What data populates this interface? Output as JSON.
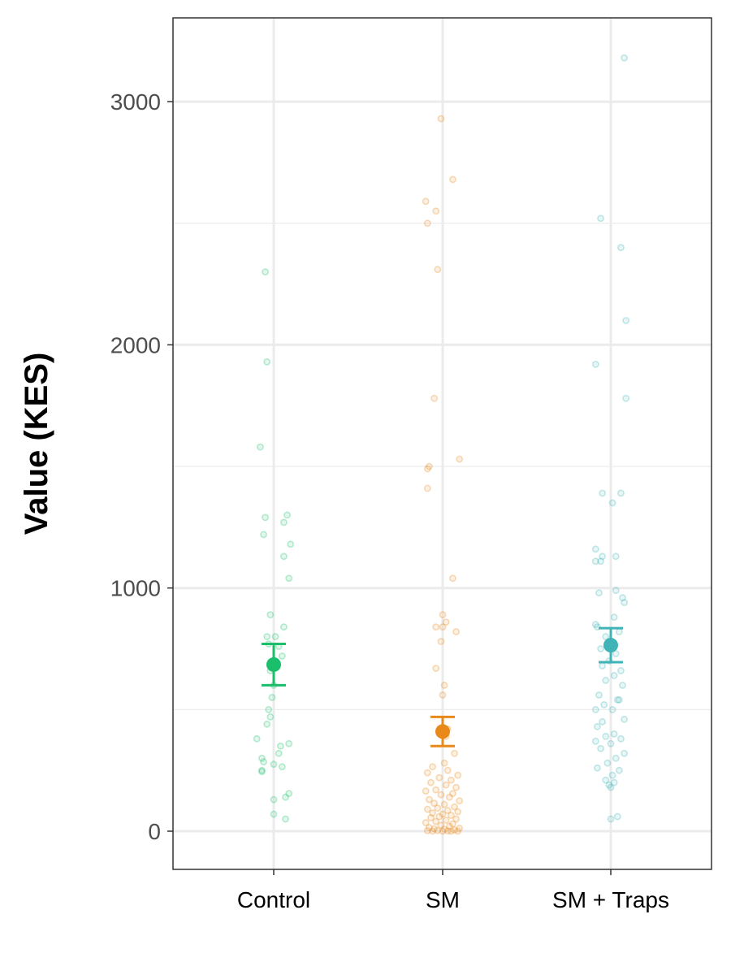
{
  "chart_data": {
    "type": "scatter",
    "title": "",
    "xlabel": "",
    "ylabel": "Value (KES)",
    "ylim": [
      -150,
      3350
    ],
    "y_ticks": [
      0,
      1000,
      2000,
      3000
    ],
    "y_tick_labels": [
      "0",
      "1000",
      "2000",
      "3000"
    ],
    "categories": [
      "Control",
      "SM",
      "SM + Traps"
    ],
    "grid": true,
    "legend": "none",
    "series": [
      {
        "category": "Control",
        "color": "#1bbf6b",
        "mean": 685,
        "ci_low": 600,
        "ci_high": 770,
        "points": [
          {
            "x": -0.05,
            "y": 2300
          },
          {
            "x": -0.04,
            "y": 1930
          },
          {
            "x": -0.08,
            "y": 1580
          },
          {
            "x": 0.08,
            "y": 1300
          },
          {
            "x": -0.05,
            "y": 1290
          },
          {
            "x": 0.06,
            "y": 1270
          },
          {
            "x": -0.06,
            "y": 1220
          },
          {
            "x": 0.1,
            "y": 1180
          },
          {
            "x": 0.06,
            "y": 1130
          },
          {
            "x": 0.09,
            "y": 1040
          },
          {
            "x": -0.02,
            "y": 890
          },
          {
            "x": 0.06,
            "y": 840
          },
          {
            "x": -0.04,
            "y": 800
          },
          {
            "x": 0.01,
            "y": 800
          },
          {
            "x": -0.03,
            "y": 770
          },
          {
            "x": 0.03,
            "y": 760
          },
          {
            "x": 0.05,
            "y": 720
          },
          {
            "x": -0.02,
            "y": 660
          },
          {
            "x": 0.0,
            "y": 600
          },
          {
            "x": -0.01,
            "y": 550
          },
          {
            "x": -0.03,
            "y": 500
          },
          {
            "x": -0.02,
            "y": 470
          },
          {
            "x": -0.04,
            "y": 440
          },
          {
            "x": -0.1,
            "y": 380
          },
          {
            "x": 0.09,
            "y": 360
          },
          {
            "x": 0.04,
            "y": 350
          },
          {
            "x": 0.03,
            "y": 320
          },
          {
            "x": -0.07,
            "y": 300
          },
          {
            "x": -0.06,
            "y": 285
          },
          {
            "x": 0.0,
            "y": 275
          },
          {
            "x": 0.05,
            "y": 265
          },
          {
            "x": -0.07,
            "y": 250
          },
          {
            "x": -0.07,
            "y": 245
          },
          {
            "x": 0.09,
            "y": 155
          },
          {
            "x": 0.07,
            "y": 140
          },
          {
            "x": 0.0,
            "y": 130
          },
          {
            "x": 0.0,
            "y": 70
          },
          {
            "x": 0.07,
            "y": 50
          }
        ]
      },
      {
        "category": "SM",
        "color": "#e8891a",
        "mean": 410,
        "ci_low": 350,
        "ci_high": 470,
        "points": [
          {
            "x": -0.01,
            "y": 2930
          },
          {
            "x": 0.06,
            "y": 2680
          },
          {
            "x": -0.1,
            "y": 2590
          },
          {
            "x": -0.04,
            "y": 2550
          },
          {
            "x": -0.09,
            "y": 2500
          },
          {
            "x": -0.03,
            "y": 2310
          },
          {
            "x": -0.05,
            "y": 1780
          },
          {
            "x": 0.1,
            "y": 1530
          },
          {
            "x": -0.08,
            "y": 1500
          },
          {
            "x": -0.09,
            "y": 1490
          },
          {
            "x": -0.09,
            "y": 1410
          },
          {
            "x": 0.06,
            "y": 1040
          },
          {
            "x": 0.0,
            "y": 890
          },
          {
            "x": 0.02,
            "y": 860
          },
          {
            "x": -0.04,
            "y": 840
          },
          {
            "x": 0.0,
            "y": 840
          },
          {
            "x": 0.08,
            "y": 820
          },
          {
            "x": -0.01,
            "y": 780
          },
          {
            "x": -0.04,
            "y": 670
          },
          {
            "x": 0.01,
            "y": 600
          },
          {
            "x": 0.0,
            "y": 560
          },
          {
            "x": 0.03,
            "y": 420
          },
          {
            "x": 0.02,
            "y": 390
          },
          {
            "x": 0.07,
            "y": 320
          },
          {
            "x": 0.01,
            "y": 280
          },
          {
            "x": -0.06,
            "y": 265
          },
          {
            "x": 0.03,
            "y": 250
          },
          {
            "x": -0.09,
            "y": 240
          },
          {
            "x": 0.09,
            "y": 230
          },
          {
            "x": -0.02,
            "y": 220
          },
          {
            "x": 0.05,
            "y": 210
          },
          {
            "x": -0.07,
            "y": 200
          },
          {
            "x": 0.02,
            "y": 190
          },
          {
            "x": 0.08,
            "y": 180
          },
          {
            "x": -0.04,
            "y": 170
          },
          {
            "x": -0.1,
            "y": 165
          },
          {
            "x": 0.06,
            "y": 155
          },
          {
            "x": -0.01,
            "y": 150
          },
          {
            "x": 0.04,
            "y": 140
          },
          {
            "x": -0.08,
            "y": 130
          },
          {
            "x": 0.1,
            "y": 125
          },
          {
            "x": -0.05,
            "y": 115
          },
          {
            "x": 0.01,
            "y": 110
          },
          {
            "x": 0.07,
            "y": 100
          },
          {
            "x": -0.03,
            "y": 95
          },
          {
            "x": -0.09,
            "y": 90
          },
          {
            "x": 0.03,
            "y": 85
          },
          {
            "x": 0.09,
            "y": 80
          },
          {
            "x": -0.06,
            "y": 75
          },
          {
            "x": 0.0,
            "y": 70
          },
          {
            "x": 0.05,
            "y": 65
          },
          {
            "x": -0.02,
            "y": 60
          },
          {
            "x": -0.07,
            "y": 55
          },
          {
            "x": 0.08,
            "y": 50
          },
          {
            "x": 0.02,
            "y": 45
          },
          {
            "x": -0.04,
            "y": 40
          },
          {
            "x": -0.1,
            "y": 35
          },
          {
            "x": 0.06,
            "y": 30
          },
          {
            "x": -0.01,
            "y": 25
          },
          {
            "x": 0.04,
            "y": 20
          },
          {
            "x": -0.08,
            "y": 15
          },
          {
            "x": 0.1,
            "y": 12
          },
          {
            "x": -0.05,
            "y": 10
          },
          {
            "x": 0.01,
            "y": 8
          },
          {
            "x": 0.07,
            "y": 5
          },
          {
            "x": -0.03,
            "y": 3
          },
          {
            "x": -0.09,
            "y": 2
          },
          {
            "x": 0.03,
            "y": 1
          },
          {
            "x": 0.09,
            "y": 0
          },
          {
            "x": -0.06,
            "y": 0
          },
          {
            "x": 0.0,
            "y": 0
          },
          {
            "x": 0.05,
            "y": 0
          }
        ]
      },
      {
        "category": "SM + Traps",
        "color": "#3fb3b5",
        "mean": 765,
        "ci_low": 695,
        "ci_high": 835,
        "points": [
          {
            "x": 0.08,
            "y": 3180
          },
          {
            "x": -0.06,
            "y": 2520
          },
          {
            "x": 0.06,
            "y": 2400
          },
          {
            "x": 0.09,
            "y": 2100
          },
          {
            "x": -0.09,
            "y": 1920
          },
          {
            "x": 0.09,
            "y": 1780
          },
          {
            "x": -0.05,
            "y": 1390
          },
          {
            "x": 0.06,
            "y": 1390
          },
          {
            "x": 0.01,
            "y": 1350
          },
          {
            "x": -0.09,
            "y": 1160
          },
          {
            "x": -0.05,
            "y": 1130
          },
          {
            "x": 0.03,
            "y": 1130
          },
          {
            "x": -0.09,
            "y": 1110
          },
          {
            "x": -0.06,
            "y": 1110
          },
          {
            "x": 0.03,
            "y": 990
          },
          {
            "x": -0.07,
            "y": 980
          },
          {
            "x": 0.07,
            "y": 960
          },
          {
            "x": 0.08,
            "y": 940
          },
          {
            "x": 0.02,
            "y": 880
          },
          {
            "x": -0.09,
            "y": 850
          },
          {
            "x": -0.08,
            "y": 840
          },
          {
            "x": 0.05,
            "y": 820
          },
          {
            "x": -0.03,
            "y": 800
          },
          {
            "x": 0.0,
            "y": 780
          },
          {
            "x": -0.06,
            "y": 750
          },
          {
            "x": 0.03,
            "y": 730
          },
          {
            "x": -0.01,
            "y": 700
          },
          {
            "x": -0.05,
            "y": 680
          },
          {
            "x": 0.06,
            "y": 660
          },
          {
            "x": 0.02,
            "y": 640
          },
          {
            "x": -0.03,
            "y": 620
          },
          {
            "x": 0.07,
            "y": 600
          },
          {
            "x": -0.07,
            "y": 560
          },
          {
            "x": 0.04,
            "y": 540
          },
          {
            "x": 0.05,
            "y": 540
          },
          {
            "x": -0.04,
            "y": 520
          },
          {
            "x": 0.01,
            "y": 500
          },
          {
            "x": -0.09,
            "y": 500
          },
          {
            "x": 0.08,
            "y": 460
          },
          {
            "x": -0.05,
            "y": 450
          },
          {
            "x": -0.08,
            "y": 430
          },
          {
            "x": 0.02,
            "y": 400
          },
          {
            "x": -0.03,
            "y": 390
          },
          {
            "x": 0.06,
            "y": 380
          },
          {
            "x": -0.09,
            "y": 370
          },
          {
            "x": 0.0,
            "y": 360
          },
          {
            "x": -0.06,
            "y": 340
          },
          {
            "x": 0.08,
            "y": 320
          },
          {
            "x": 0.03,
            "y": 300
          },
          {
            "x": -0.02,
            "y": 280
          },
          {
            "x": -0.08,
            "y": 260
          },
          {
            "x": 0.05,
            "y": 250
          },
          {
            "x": 0.01,
            "y": 230
          },
          {
            "x": -0.03,
            "y": 210
          },
          {
            "x": 0.02,
            "y": 200
          },
          {
            "x": -0.01,
            "y": 190
          },
          {
            "x": 0.0,
            "y": 180
          },
          {
            "x": 0.04,
            "y": 60
          },
          {
            "x": 0.0,
            "y": 50
          }
        ]
      }
    ]
  }
}
